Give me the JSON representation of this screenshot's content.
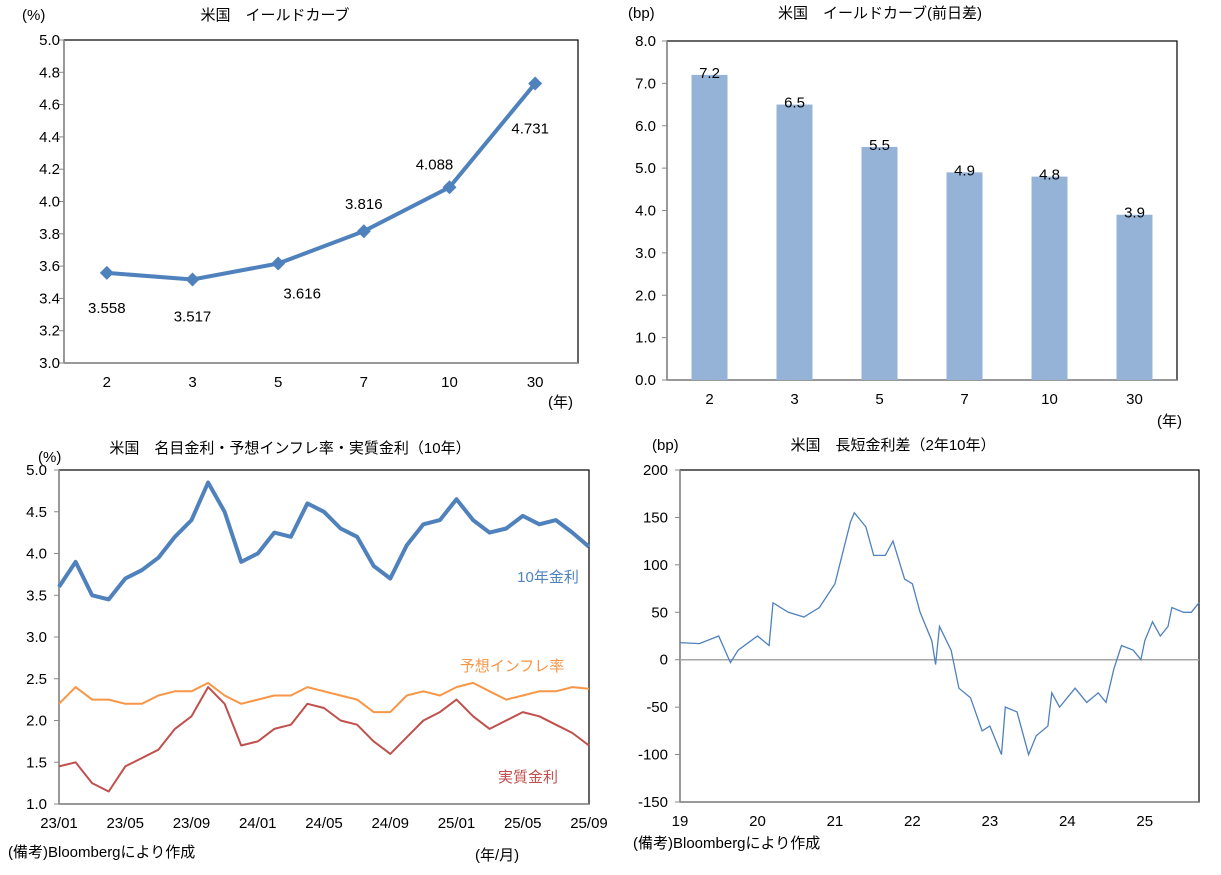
{
  "chart_data": [
    {
      "type": "line",
      "title": "米国　イールドカーブ",
      "ylabel": "(%)",
      "xlabel": "(年)",
      "categories": [
        "2",
        "3",
        "5",
        "7",
        "10",
        "30"
      ],
      "values": [
        3.558,
        3.517,
        3.616,
        3.816,
        4.088,
        4.731
      ],
      "data_labels": [
        "3.558",
        "3.517",
        "3.616",
        "3.816",
        "4.088",
        "4.731"
      ],
      "ylim": [
        3.0,
        5.0
      ],
      "yticks": [
        "3.0",
        "3.2",
        "3.4",
        "3.6",
        "3.8",
        "4.0",
        "4.2",
        "4.4",
        "4.6",
        "4.8",
        "5.0"
      ],
      "color": "#4f81bd",
      "marker": "diamond",
      "grid": false
    },
    {
      "type": "bar",
      "title": "米国　イールドカーブ(前日差)",
      "ylabel": "(bp)",
      "xlabel": "(年)",
      "categories": [
        "2",
        "3",
        "5",
        "7",
        "10",
        "30"
      ],
      "values": [
        7.2,
        6.5,
        5.5,
        4.9,
        4.8,
        3.9
      ],
      "data_labels": [
        "7.2",
        "6.5",
        "5.5",
        "4.9",
        "4.8",
        "3.9"
      ],
      "ylim": [
        0,
        8
      ],
      "yticks": [
        "0.0",
        "1.0",
        "2.0",
        "3.0",
        "4.0",
        "5.0",
        "6.0",
        "7.0",
        "8.0"
      ],
      "color": "#95b3d7",
      "grid": false
    },
    {
      "type": "line",
      "title": "米国　名目金利・予想インフレ率・実質金利（10年）",
      "ylabel": "(%)",
      "xlabel": "(年/月)",
      "note": "(備考)Bloombergにより作成",
      "x": [
        "23/01",
        "23/02",
        "23/03",
        "23/04",
        "23/05",
        "23/06",
        "23/07",
        "23/08",
        "23/09",
        "23/10",
        "23/11",
        "23/12",
        "24/01",
        "24/02",
        "24/03",
        "24/04",
        "24/05",
        "24/06",
        "24/07",
        "24/08",
        "24/09",
        "24/10",
        "24/11",
        "24/12",
        "25/01",
        "25/02",
        "25/03",
        "25/04",
        "25/05",
        "25/06",
        "25/07",
        "25/08",
        "25/09"
      ],
      "xticks": [
        "23/01",
        "23/05",
        "23/09",
        "24/01",
        "24/05",
        "24/09",
        "25/01",
        "25/05",
        "25/09"
      ],
      "ylim": [
        1.0,
        5.0
      ],
      "yticks": [
        "1.0",
        "1.5",
        "2.0",
        "2.5",
        "3.0",
        "3.5",
        "4.0",
        "4.5",
        "5.0"
      ],
      "series": [
        {
          "name": "10年金利",
          "color": "#4f81bd",
          "values": [
            3.6,
            3.9,
            3.5,
            3.45,
            3.7,
            3.8,
            3.95,
            4.2,
            4.4,
            4.85,
            4.5,
            3.9,
            4.0,
            4.25,
            4.2,
            4.6,
            4.5,
            4.3,
            4.2,
            3.85,
            3.7,
            4.1,
            4.35,
            4.4,
            4.65,
            4.4,
            4.25,
            4.3,
            4.45,
            4.35,
            4.4,
            4.25,
            4.08
          ]
        },
        {
          "name": "予想インフレ率",
          "color": "#f79646",
          "values": [
            2.2,
            2.4,
            2.25,
            2.25,
            2.2,
            2.2,
            2.3,
            2.35,
            2.35,
            2.45,
            2.3,
            2.2,
            2.25,
            2.3,
            2.3,
            2.4,
            2.35,
            2.3,
            2.25,
            2.1,
            2.1,
            2.3,
            2.35,
            2.3,
            2.4,
            2.45,
            2.35,
            2.25,
            2.3,
            2.35,
            2.35,
            2.4,
            2.38
          ]
        },
        {
          "name": "実質金利",
          "color": "#c0504d",
          "values": [
            1.45,
            1.5,
            1.25,
            1.15,
            1.45,
            1.55,
            1.65,
            1.9,
            2.05,
            2.4,
            2.2,
            1.7,
            1.75,
            1.9,
            1.95,
            2.2,
            2.15,
            2.0,
            1.95,
            1.75,
            1.6,
            1.8,
            2.0,
            2.1,
            2.25,
            2.05,
            1.9,
            2.0,
            2.1,
            2.05,
            1.95,
            1.85,
            1.7
          ]
        }
      ],
      "grid": false
    },
    {
      "type": "line",
      "title": "米国　長短金利差（2年10年）",
      "ylabel": "(bp)",
      "note": "(備考)Bloombergにより作成",
      "x": [
        19.0,
        19.25,
        19.5,
        19.65,
        19.75,
        20.0,
        20.15,
        20.2,
        20.4,
        20.6,
        20.8,
        21.0,
        21.2,
        21.25,
        21.4,
        21.5,
        21.65,
        21.75,
        21.9,
        22.0,
        22.1,
        22.25,
        22.3,
        22.35,
        22.5,
        22.6,
        22.75,
        22.9,
        23.0,
        23.15,
        23.2,
        23.35,
        23.5,
        23.6,
        23.75,
        23.8,
        23.9,
        24.0,
        24.1,
        24.25,
        24.4,
        24.5,
        24.6,
        24.7,
        24.85,
        24.95,
        25.0,
        25.1,
        25.2,
        25.3,
        25.35,
        25.5,
        25.6,
        25.7
      ],
      "values": [
        18,
        17,
        25,
        -3,
        10,
        25,
        15,
        60,
        50,
        45,
        55,
        80,
        145,
        155,
        140,
        110,
        110,
        125,
        85,
        80,
        50,
        20,
        -5,
        35,
        10,
        -30,
        -40,
        -75,
        -70,
        -100,
        -50,
        -55,
        -100,
        -80,
        -70,
        -35,
        -50,
        -40,
        -30,
        -45,
        -35,
        -45,
        -10,
        15,
        10,
        0,
        20,
        40,
        25,
        35,
        55,
        50,
        50,
        60
      ],
      "xticks": [
        "19",
        "20",
        "21",
        "22",
        "23",
        "24",
        "25"
      ],
      "ylim": [
        -150,
        200
      ],
      "yticks": [
        "-150",
        "-100",
        "-50",
        "0",
        "50",
        "100",
        "150",
        "200"
      ],
      "color": "#4f81bd",
      "zero_line_color": "#a6a6a6",
      "grid": false
    }
  ]
}
